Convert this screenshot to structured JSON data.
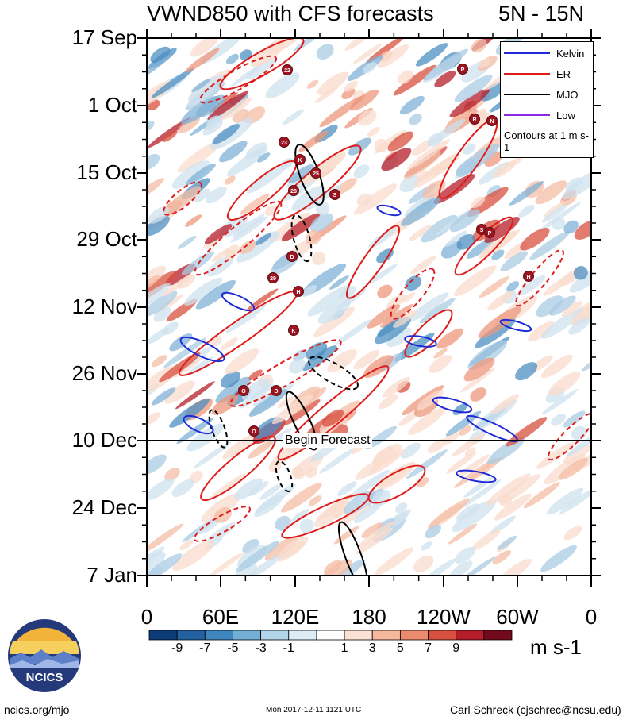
{
  "title": "VWND850 with CFS forecasts",
  "region": "5N - 15N",
  "legend": {
    "items": [
      {
        "label": "Kelvin",
        "color": "#1f2bd6"
      },
      {
        "label": "ER",
        "color": "#e01b1b"
      },
      {
        "label": "MJO",
        "color": "#000000"
      },
      {
        "label": "Low",
        "color": "#8a2be2"
      }
    ],
    "note": "Contours at 1 m s-1"
  },
  "chart_data": {
    "type": "heatmap",
    "title": "VWND850 with CFS forecasts",
    "subtitle": "5N - 15N",
    "x_ticks": [
      "0",
      "60E",
      "120E",
      "180",
      "120W",
      "60W",
      "0"
    ],
    "y_ticks": [
      "17 Sep",
      "1 Oct",
      "15 Oct",
      "29 Oct",
      "12 Nov",
      "26 Nov",
      "10 Dec",
      "24 Dec",
      "7 Jan"
    ],
    "xlim": [
      "0",
      "0"
    ],
    "ylim": [
      "17 Sep",
      "7 Jan"
    ],
    "forecast_start": "10 Dec",
    "forecast_label": "Begin Forecast",
    "colorbar": {
      "units": "m s-1",
      "labels": [
        "-9",
        "-7",
        "-5",
        "-3",
        "-1",
        "1",
        "3",
        "5",
        "7",
        "9"
      ],
      "colors": [
        "#0c3d78",
        "#23609e",
        "#3f86bf",
        "#73aed4",
        "#b2d3e8",
        "#ddebf5",
        "#ffffff",
        "#fbe1d3",
        "#f5b89d",
        "#ec8a6f",
        "#d8503f",
        "#b51d2a",
        "#720a1c"
      ]
    },
    "storm_labels": [
      "P",
      "22",
      "R",
      "N",
      "23",
      "K",
      "25",
      "28",
      "S",
      "S",
      "P",
      "D",
      "29",
      "H",
      "H",
      "K",
      "O",
      "D",
      "O"
    ]
  },
  "footer": {
    "site": "ncics.org/mjo",
    "timestamp": "Mon 2017-12-11 1121 UTC",
    "author": "Carl Schreck (cjschrec@ncsu.edu)"
  },
  "logo": {
    "text": "NCICS"
  }
}
